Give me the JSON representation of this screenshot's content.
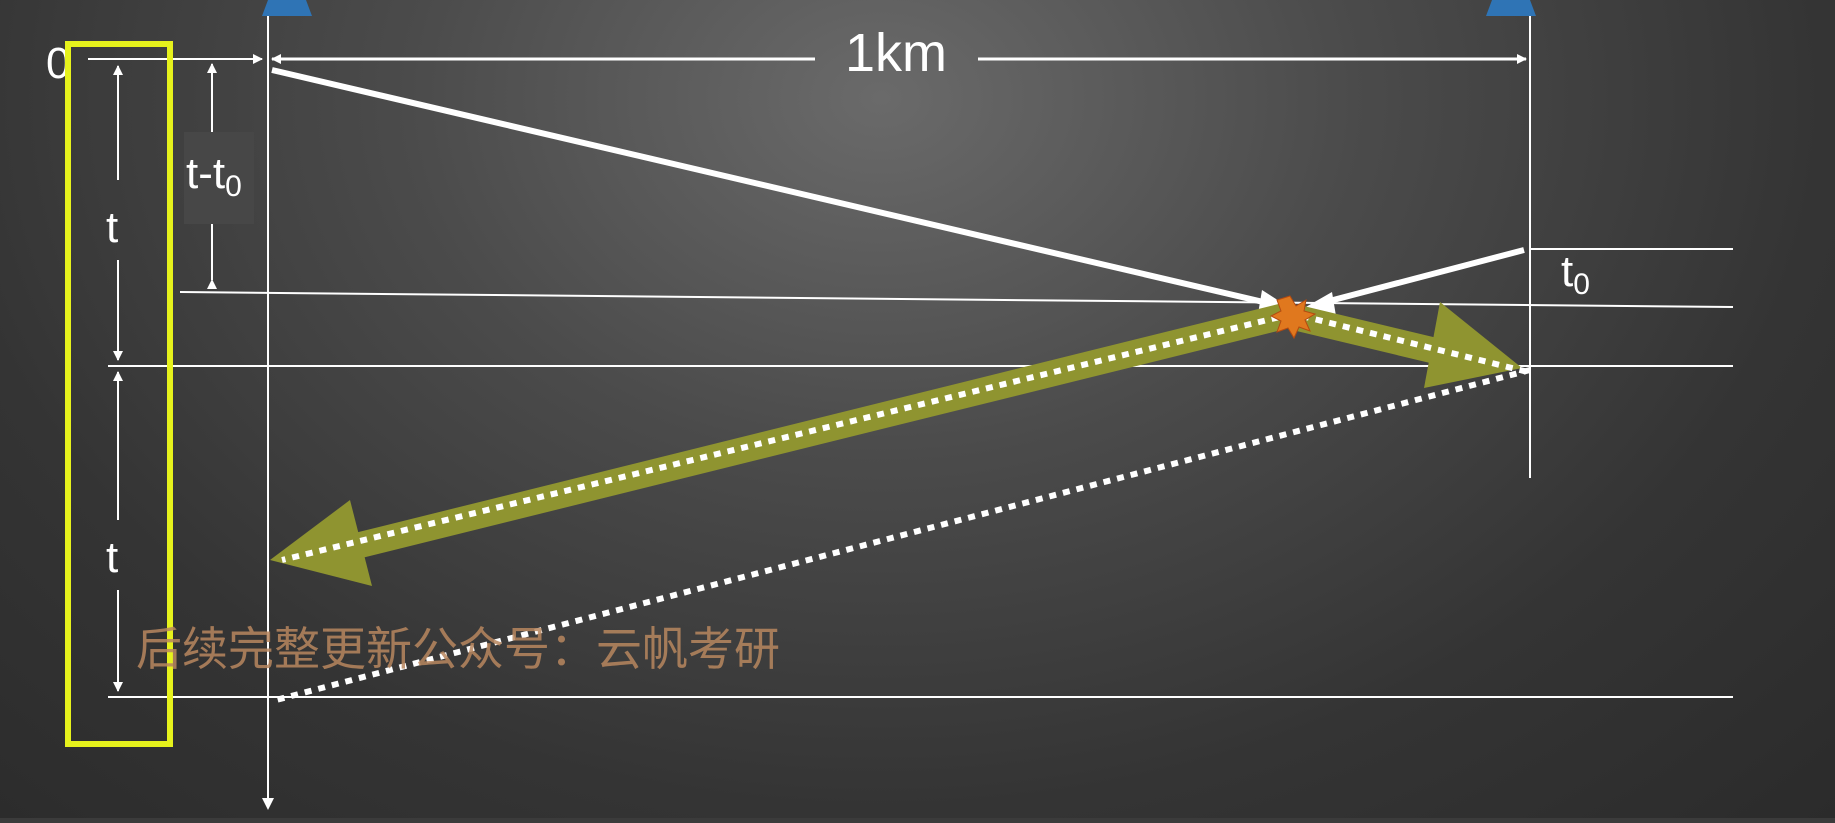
{
  "labels": {
    "origin": "0",
    "distance": "1km",
    "t_upper": "t",
    "t_lower": "t",
    "t_minus_t0_t": "t-t",
    "t_minus_t0_sub": "0",
    "t0_t": "t",
    "t0_sub": "0"
  },
  "watermark": "后续完整更新公众号：云帆考研",
  "colors": {
    "background": "#3b3b3b",
    "line": "#ffffff",
    "highlight_box": "#e6f21c",
    "signal_arrow": "#8f9430",
    "collision": "#e0781e",
    "station": "#2f74b5",
    "watermark": "#b8875f"
  }
}
